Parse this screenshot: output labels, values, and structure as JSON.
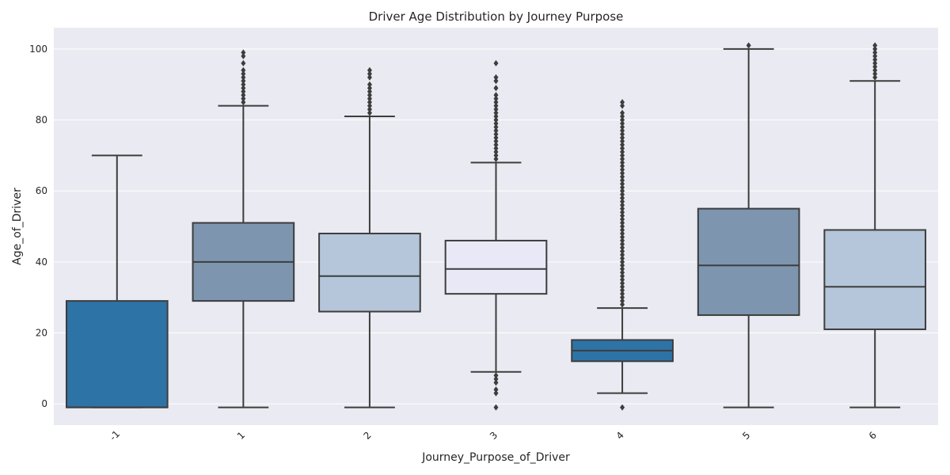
{
  "chart_data": {
    "type": "box",
    "title": "Driver Age Distribution by Journey Purpose",
    "xlabel": "Journey_Purpose_of_Driver",
    "ylabel": "Age_of_Driver",
    "ylim": [
      -6,
      106
    ],
    "yticks": [
      0,
      20,
      40,
      60,
      80,
      100
    ],
    "grid": true,
    "categories": [
      "-1",
      "1",
      "2",
      "3",
      "4",
      "5",
      "6"
    ],
    "boxes": [
      {
        "category": "-1",
        "whisker_low": -1,
        "q1": -1,
        "median": -1,
        "q3": 29,
        "whisker_high": 70,
        "color": "#2e73a6",
        "outliers": []
      },
      {
        "category": "1",
        "whisker_low": -1,
        "q1": 29,
        "median": 40,
        "q3": 51,
        "whisker_high": 84,
        "color": "#7d95af",
        "outliers": [
          85,
          86,
          87,
          88,
          89,
          90,
          91,
          92,
          93,
          94,
          96,
          98,
          99
        ]
      },
      {
        "category": "2",
        "whisker_low": -1,
        "q1": 26,
        "median": 36,
        "q3": 48,
        "whisker_high": 81,
        "color": "#b5c6da",
        "outliers": [
          82,
          83,
          84,
          85,
          86,
          87,
          88,
          89,
          90,
          92,
          93,
          94
        ]
      },
      {
        "category": "3",
        "whisker_low": 9,
        "q1": 31,
        "median": 38,
        "q3": 46,
        "whisker_high": 68,
        "color": "#e9e8f6",
        "outliers": [
          -1,
          3,
          4,
          6,
          7,
          8,
          69,
          70,
          71,
          72,
          73,
          74,
          75,
          76,
          77,
          78,
          79,
          80,
          81,
          82,
          83,
          84,
          85,
          86,
          87,
          89,
          91,
          92,
          96
        ]
      },
      {
        "category": "4",
        "whisker_low": 3,
        "q1": 12,
        "median": 15,
        "q3": 18,
        "whisker_high": 27,
        "color": "#2e73a6",
        "outliers": [
          -1,
          28,
          29,
          30,
          31,
          32,
          33,
          34,
          35,
          36,
          37,
          38,
          39,
          40,
          41,
          42,
          43,
          44,
          45,
          46,
          47,
          48,
          49,
          50,
          51,
          52,
          53,
          54,
          55,
          56,
          57,
          58,
          59,
          60,
          61,
          62,
          63,
          64,
          65,
          66,
          67,
          68,
          69,
          70,
          71,
          72,
          73,
          74,
          75,
          76,
          77,
          78,
          79,
          80,
          81,
          82,
          84,
          85
        ]
      },
      {
        "category": "5",
        "whisker_low": -1,
        "q1": 25,
        "median": 39,
        "q3": 55,
        "whisker_high": 100,
        "color": "#7d95af",
        "outliers": [
          101
        ]
      },
      {
        "category": "6",
        "whisker_low": -1,
        "q1": 21,
        "median": 33,
        "q3": 49,
        "whisker_high": 91,
        "color": "#b5c6da",
        "outliers": [
          92,
          93,
          94,
          95,
          96,
          97,
          98,
          99,
          100,
          101
        ]
      }
    ],
    "style": {
      "background": "#eaeaf2",
      "line_color": "#3d3d3d",
      "grid_color": "#ffffff"
    }
  }
}
